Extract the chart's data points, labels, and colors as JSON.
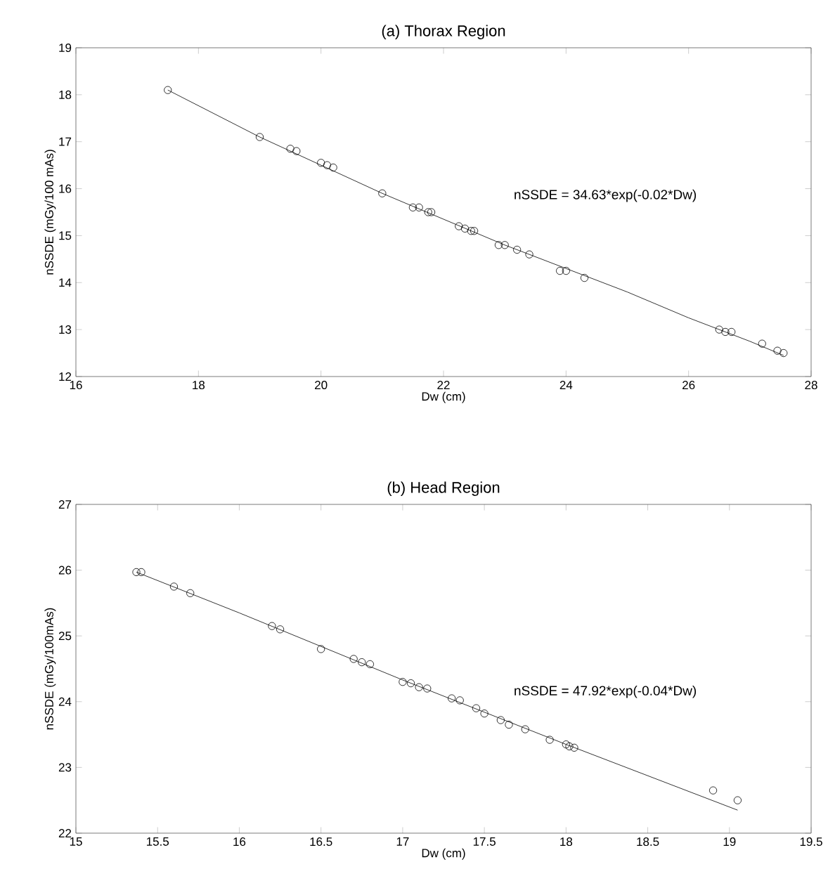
{
  "chart_data": [
    {
      "type": "scatter",
      "title": "(a) Thorax Region",
      "xlabel": "Dw (cm)",
      "ylabel": "nSSDE (mGy/100 mAs)",
      "xlim": [
        16,
        28
      ],
      "ylim": [
        12,
        19
      ],
      "xticks": [
        16,
        18,
        20,
        22,
        24,
        26,
        28
      ],
      "yticks": [
        12,
        13,
        14,
        15,
        16,
        17,
        18,
        19
      ],
      "annotations": [
        "nSSDE = 34.63*exp(-0.02*Dw)"
      ],
      "series": [
        {
          "color": "#000000",
          "marker": "circle",
          "x": [
            17.5,
            19.0,
            19.5,
            19.6,
            20.0,
            20.1,
            20.2,
            21.0,
            21.5,
            21.6,
            21.75,
            21.8,
            22.25,
            22.35,
            22.45,
            22.5,
            22.9,
            23.0,
            23.2,
            23.4,
            23.9,
            24.0,
            24.3,
            26.5,
            26.6,
            26.7,
            27.2,
            27.45,
            27.55
          ],
          "values": [
            18.1,
            17.1,
            16.85,
            16.8,
            16.55,
            16.5,
            16.45,
            15.9,
            15.6,
            15.6,
            15.5,
            15.5,
            15.2,
            15.15,
            15.1,
            15.1,
            14.8,
            14.8,
            14.7,
            14.6,
            14.25,
            14.25,
            14.1,
            13.0,
            12.95,
            12.95,
            12.7,
            12.55,
            12.5
          ]
        },
        {
          "type": "line",
          "color": "#000000",
          "marker": "none",
          "x": [
            17.5,
            19,
            20,
            21,
            22,
            23,
            24,
            25,
            26,
            27,
            27.55
          ],
          "values": [
            18.1,
            17.1,
            16.5,
            15.9,
            15.35,
            14.8,
            14.3,
            13.8,
            13.25,
            12.75,
            12.45
          ]
        }
      ]
    },
    {
      "type": "scatter",
      "title": "(b) Head Region",
      "xlabel": "Dw (cm)",
      "ylabel": "nSSDE (mGy/100mAs)",
      "xlim": [
        15,
        19.5
      ],
      "ylim": [
        22,
        27
      ],
      "xticks": [
        15,
        15.5,
        16,
        16.5,
        17,
        17.5,
        18,
        18.5,
        19,
        19.5
      ],
      "yticks": [
        22,
        23,
        24,
        25,
        26,
        27
      ],
      "annotations": [
        "nSSDE = 47.92*exp(-0.04*Dw)"
      ],
      "series": [
        {
          "color": "#000000",
          "marker": "circle",
          "x": [
            15.37,
            15.4,
            15.6,
            15.7,
            16.2,
            16.25,
            16.5,
            16.7,
            16.75,
            16.8,
            17.0,
            17.05,
            17.1,
            17.15,
            17.3,
            17.35,
            17.45,
            17.5,
            17.6,
            17.65,
            17.75,
            17.9,
            18.0,
            18.02,
            18.05,
            18.9,
            19.05
          ],
          "values": [
            25.97,
            25.97,
            25.75,
            25.65,
            25.15,
            25.1,
            24.8,
            24.65,
            24.6,
            24.57,
            24.3,
            24.28,
            24.22,
            24.2,
            24.05,
            24.02,
            23.9,
            23.82,
            23.72,
            23.65,
            23.58,
            23.42,
            23.35,
            23.32,
            23.3,
            22.65,
            22.5
          ]
        },
        {
          "type": "line",
          "color": "#000000",
          "marker": "none",
          "x": [
            15.37,
            16,
            17,
            18,
            19.05
          ],
          "values": [
            25.97,
            25.35,
            24.33,
            23.35,
            22.35
          ]
        }
      ]
    }
  ]
}
